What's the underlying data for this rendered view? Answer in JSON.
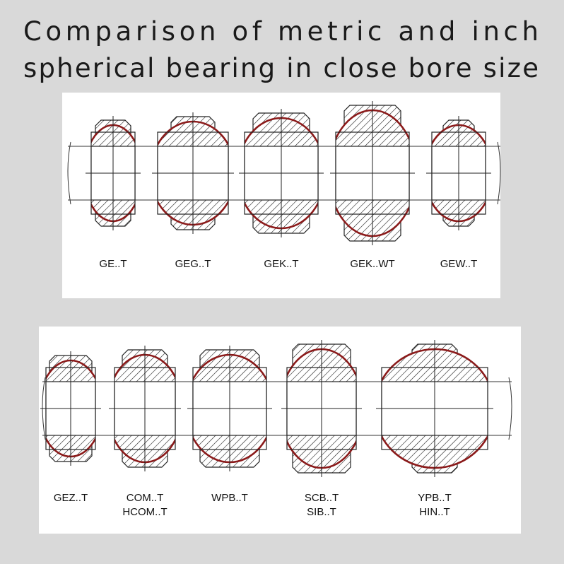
{
  "title": [
    "Comparison of metric and inch",
    "spherical bearing in close bore size"
  ],
  "panels": [
    {
      "bearings": [
        {
          "label": [
            "GE..T"
          ]
        },
        {
          "label": [
            "GEG..T"
          ]
        },
        {
          "label": [
            "GEK..T"
          ]
        },
        {
          "label": [
            "GEK..WT"
          ]
        },
        {
          "label": [
            "GEW..T"
          ]
        }
      ]
    },
    {
      "bearings": [
        {
          "label": [
            "GEZ..T"
          ]
        },
        {
          "label": [
            "COM..T",
            "HCOM..T"
          ]
        },
        {
          "label": [
            "WPB..T"
          ]
        },
        {
          "label": [
            "SCB..T",
            "SIB..T"
          ]
        },
        {
          "label": [
            "YPB..T",
            "HIN..T"
          ]
        }
      ]
    }
  ]
}
